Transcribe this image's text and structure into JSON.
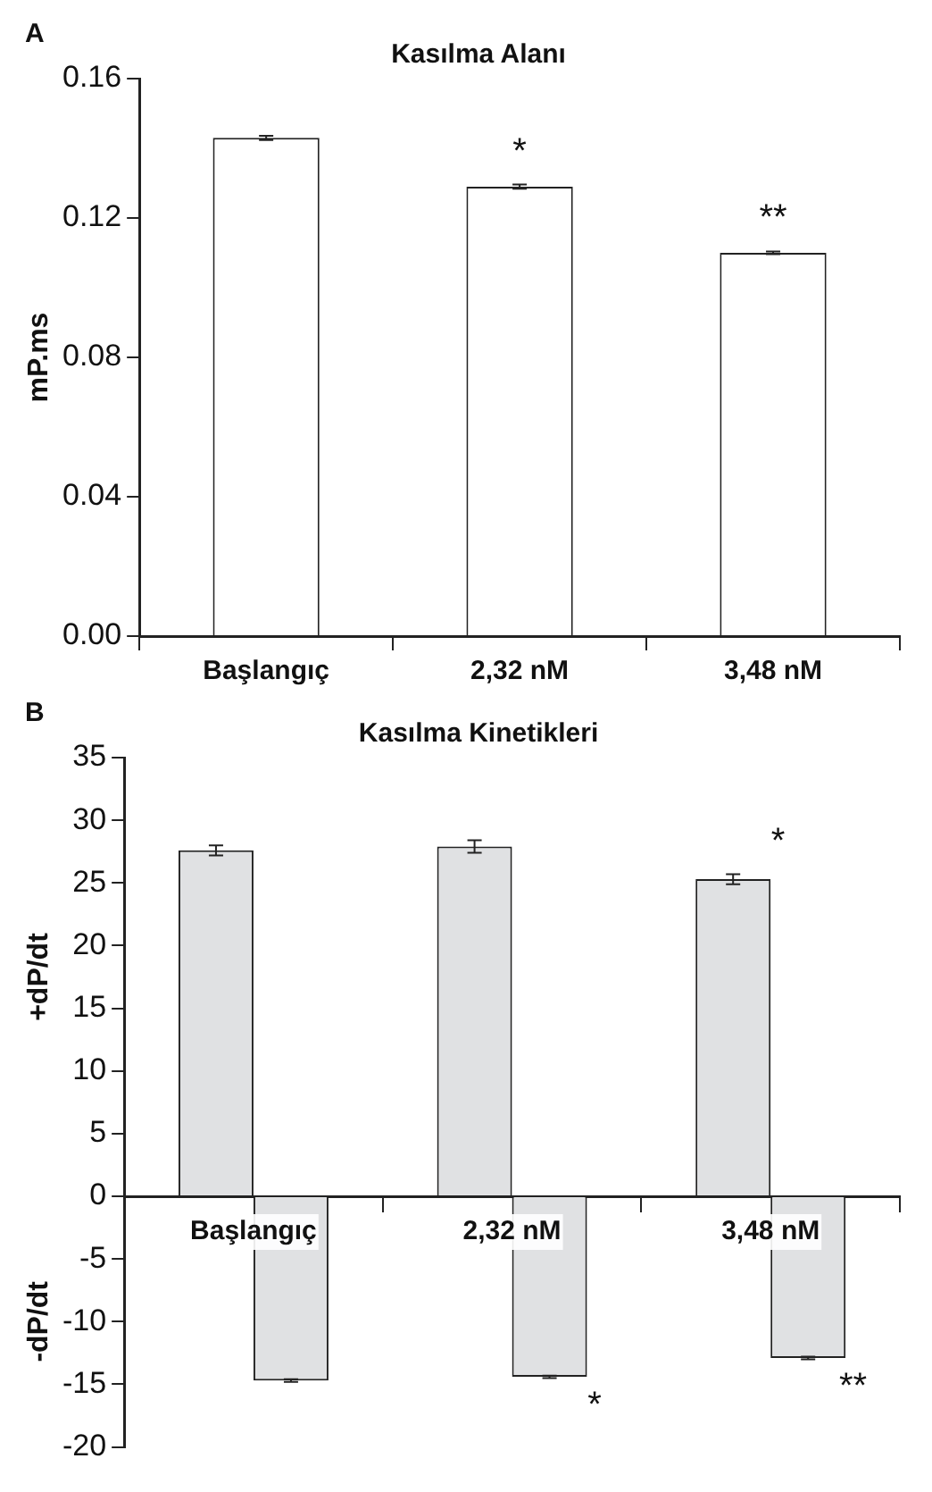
{
  "chart_data": [
    {
      "type": "bar",
      "title": "Kasılma Alanı",
      "ylabel": "mP.ms",
      "categories": [
        "Başlangıç",
        "2,32 nM",
        "3,48 nM"
      ],
      "values": [
        0.143,
        0.129,
        0.11
      ],
      "errors": [
        0.0006,
        0.0006,
        0.0004
      ],
      "color": "#ffffff",
      "ylim": [
        0,
        0.16
      ],
      "yticks": [
        {
          "value": 0,
          "label": "0.00"
        },
        {
          "value": 0.04,
          "label": "0.04"
        },
        {
          "value": 0.08,
          "label": "0.08"
        },
        {
          "value": 0.12,
          "label": "0.12"
        },
        {
          "value": 0.16,
          "label": "0.16"
        }
      ],
      "grid": false,
      "legend": false,
      "annotations": [
        "A",
        {
          "text": "*",
          "x": "2,32 nM",
          "y": 0.129
        },
        {
          "text": "**",
          "x": "3,48 nM",
          "y": 0.11
        }
      ]
    },
    {
      "type": "bar",
      "title": "Kasılma Kinetikleri",
      "ylabel": "+dP/dt",
      "categories": [
        "Başlangıç",
        "2,32 nM",
        "3,48 nM"
      ],
      "series": [
        {
          "color": "#e0e1e3",
          "values": [
            27.6,
            27.9,
            25.3
          ],
          "errors": [
            0.4,
            0.5,
            0.4
          ]
        },
        {
          "color": "#e0e1e3",
          "values": [
            -14.7,
            -14.4,
            -12.9
          ],
          "errors": [
            0.1,
            0.1,
            0.1
          ]
        }
      ],
      "ylim": [
        -20,
        35
      ],
      "yticks": [
        -20,
        -15,
        -10,
        -5,
        0,
        5,
        10,
        15,
        20,
        25,
        30,
        35
      ],
      "grid": false,
      "legend": false,
      "annotations": [
        "B",
        "-dP/dt",
        {
          "text": "*",
          "x": "3,48 nM",
          "y": 25.3
        },
        {
          "text": "*",
          "x": "2,32 nM",
          "y": -14.4
        },
        {
          "text": "**",
          "x": "3,48 nM",
          "y": -12.9
        }
      ]
    }
  ]
}
